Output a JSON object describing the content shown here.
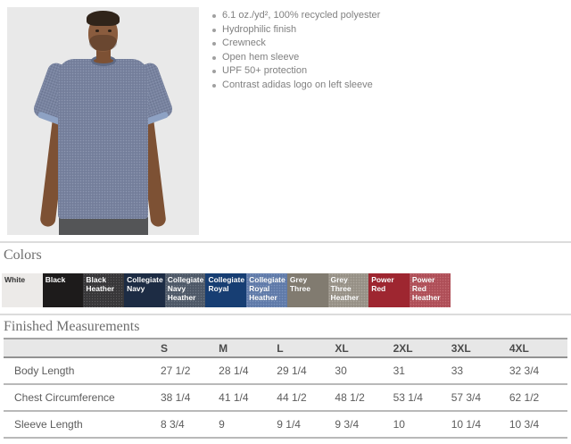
{
  "product": {
    "features": [
      "6.1 oz./yd², 100% recycled polyester",
      "Hydrophilic finish",
      "Crewneck",
      "Open hem sleeve",
      "UPF 50+ protection",
      "Contrast adidas logo on left sleeve"
    ]
  },
  "colors_section": {
    "title": "Colors",
    "swatches": [
      {
        "name": "White",
        "bg": "#eceae8",
        "text_color": "#3a3a3a",
        "heather": false
      },
      {
        "name": "Black",
        "bg": "#1d1b1b",
        "text_color": "#ffffff",
        "heather": false
      },
      {
        "name": "Black Heather",
        "bg": "#3a393b",
        "text_color": "#ffffff",
        "heather": true
      },
      {
        "name": "Collegiate Navy",
        "bg": "#1d2c44",
        "text_color": "#ffffff",
        "heather": false
      },
      {
        "name": "Collegiate Navy Heather",
        "bg": "#515c6b",
        "text_color": "#ffffff",
        "heather": true
      },
      {
        "name": "Collegiate Royal",
        "bg": "#173e73",
        "text_color": "#ffffff",
        "heather": false
      },
      {
        "name": "Collegiate Royal Heather",
        "bg": "#647fae",
        "text_color": "#ffffff",
        "heather": true
      },
      {
        "name": "Grey Three",
        "bg": "#817b70",
        "text_color": "#ffffff",
        "heather": false
      },
      {
        "name": "Grey Three Heather",
        "bg": "#9c968b",
        "text_color": "#ffffff",
        "heather": true
      },
      {
        "name": "Power Red",
        "bg": "#9e2630",
        "text_color": "#ffffff",
        "heather": false
      },
      {
        "name": "Power Red Heather",
        "bg": "#b4525b",
        "text_color": "#ffffff",
        "heather": true
      }
    ]
  },
  "measurements": {
    "title": "Finished Measurements",
    "columns": [
      "S",
      "M",
      "L",
      "XL",
      "2XL",
      "3XL",
      "4XL"
    ],
    "rows": [
      {
        "label": "Body Length",
        "values": [
          "27 1/2",
          "28 1/4",
          "29 1/4",
          "30",
          "31",
          "33",
          "32 3/4"
        ]
      },
      {
        "label": "Chest Circumference",
        "values": [
          "38 1/4",
          "41 1/4",
          "44 1/2",
          "48 1/2",
          "53 1/4",
          "57 3/4",
          "62 1/2"
        ]
      },
      {
        "label": "Sleeve Length",
        "values": [
          "8 3/4",
          "9",
          "9 1/4",
          "9 3/4",
          "10",
          "10 1/4",
          "10 3/4"
        ]
      }
    ]
  }
}
